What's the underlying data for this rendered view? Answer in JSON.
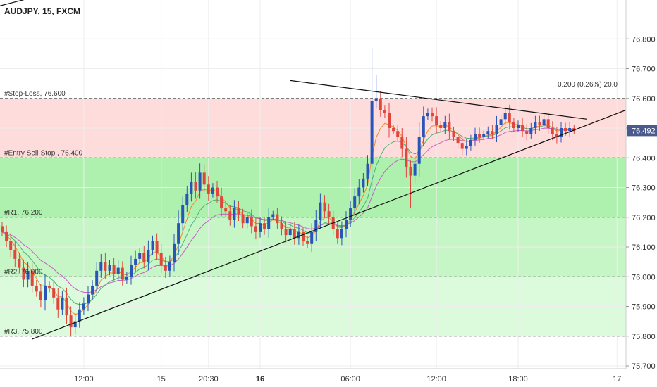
{
  "chart_data": {
    "type": "candlestick",
    "title": "AUDJPY, 15, FXCM",
    "symbol": "AUDJPY",
    "interval": "15",
    "source": "FXCM",
    "ylim": [
      75.7,
      76.9
    ],
    "y_ticks": [
      "76.800",
      "76.700",
      "76.600",
      "76.500",
      "76.400",
      "76.300",
      "76.200",
      "76.100",
      "76.000",
      "75.900",
      "75.800",
      "75.700"
    ],
    "x_ticks": [
      "12:00",
      "15",
      "20:30",
      "16",
      "06:00",
      "12:00",
      "18:00",
      "17"
    ],
    "bold_x_ticks": [
      "16"
    ],
    "last_price": "76.492",
    "last_price_color": "#4a5a8c",
    "measure_label": "0.200 (0.26%) 20.0",
    "levels": [
      {
        "label": "#Stop-Loss, 76.600",
        "value": 76.6
      },
      {
        "label": "#Entry Sell-Stop , 76.400",
        "value": 76.4
      },
      {
        "label": "#R1, 76.200",
        "value": 76.2
      },
      {
        "label": "#R2, 76.000",
        "value": 76.0
      },
      {
        "label": "#R3, 75.800",
        "value": 75.8
      }
    ],
    "zones": [
      {
        "from": 76.4,
        "to": 76.6,
        "color": "#ffdcdc"
      },
      {
        "from": 76.2,
        "to": 76.4,
        "color": "#aef0ae"
      },
      {
        "from": 76.0,
        "to": 76.2,
        "color": "#c6f6c6"
      },
      {
        "from": 75.8,
        "to": 76.0,
        "color": "#dcfadc"
      }
    ],
    "colors": {
      "bull": "#2a55b8",
      "bear": "#e0463c",
      "ma_fast": "#f0892c",
      "ma_mid": "#4fb27a",
      "ma_slow": "#c65fc6",
      "grid": "#eeeeee"
    },
    "series": [
      {
        "name": "close",
        "values": [
          76.15,
          76.12,
          76.09,
          76.06,
          76.03,
          75.99,
          76.02,
          75.97,
          75.95,
          75.92,
          75.97,
          75.96,
          75.93,
          75.89,
          75.93,
          75.87,
          75.83,
          75.85,
          75.89,
          75.91,
          75.94,
          75.97,
          76.02,
          76.05,
          76.02,
          76.04,
          76.01,
          76.03,
          75.99,
          76.0,
          76.04,
          76.06,
          76.08,
          76.05,
          76.09,
          76.12,
          76.08,
          76.04,
          76.02,
          76.05,
          76.11,
          76.18,
          76.24,
          76.28,
          76.32,
          76.29,
          76.35,
          76.31,
          76.28,
          76.3,
          76.27,
          76.23,
          76.22,
          76.19,
          76.23,
          76.21,
          76.18,
          76.2,
          76.17,
          76.15,
          76.18,
          76.16,
          76.2,
          76.21,
          76.18,
          76.16,
          76.14,
          76.16,
          76.13,
          76.15,
          76.12,
          76.11,
          76.15,
          76.19,
          76.25,
          76.22,
          76.2,
          76.16,
          76.13,
          76.16,
          76.19,
          76.23,
          76.27,
          76.3,
          76.33,
          76.38,
          76.59,
          76.6,
          76.56,
          76.55,
          76.5,
          76.49,
          76.47,
          76.43,
          76.37,
          76.34,
          76.38,
          76.47,
          76.54,
          76.55,
          76.54,
          76.51,
          76.5,
          76.52,
          76.49,
          76.47,
          76.45,
          76.43,
          76.44,
          76.46,
          76.48,
          76.47,
          76.48,
          76.49,
          76.48,
          76.51,
          76.53,
          76.55,
          76.52,
          76.5,
          76.51,
          76.49,
          76.48,
          76.5,
          76.52,
          76.51,
          76.53,
          76.5,
          76.48,
          76.47,
          76.5,
          76.49,
          76.5,
          76.49
        ]
      }
    ],
    "trendlines": [
      {
        "name": "lower-support",
        "from": {
          "i": 7,
          "y": 75.79
        },
        "to": {
          "i": 136,
          "y": 76.51
        }
      },
      {
        "name": "upper-resistance",
        "from": {
          "i": 67,
          "y": 76.66
        },
        "to": {
          "i": 136,
          "y": 76.53
        }
      },
      {
        "name": "top-left-line",
        "from": {
          "i": -9,
          "y": 76.88
        },
        "to": {
          "i": 10,
          "y": 76.95
        }
      }
    ],
    "grid": true,
    "legend": "none"
  }
}
